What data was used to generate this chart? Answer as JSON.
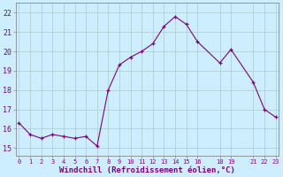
{
  "x": [
    0,
    1,
    2,
    3,
    4,
    5,
    6,
    7,
    8,
    9,
    10,
    11,
    12,
    13,
    14,
    15,
    16,
    18,
    19,
    21,
    22,
    23
  ],
  "y": [
    16.3,
    15.7,
    15.5,
    15.7,
    15.6,
    15.5,
    15.6,
    15.1,
    18.0,
    19.3,
    19.7,
    20.0,
    20.4,
    21.3,
    21.8,
    21.4,
    20.5,
    19.4,
    20.1,
    18.4,
    17.0,
    16.6
  ],
  "line_color": "#800080",
  "marker": "+",
  "marker_color": "#800080",
  "bg_color": "#cceeff",
  "grid_color": "#aacccc",
  "xlabel": "Windchill (Refroidissement éolien,°C)",
  "xlabel_color": "#800080",
  "xticks": [
    0,
    1,
    2,
    3,
    4,
    5,
    6,
    7,
    8,
    9,
    10,
    11,
    12,
    13,
    14,
    15,
    16,
    18,
    19,
    21,
    22,
    23
  ],
  "xtick_labels": [
    "0",
    "1",
    "2",
    "3",
    "4",
    "5",
    "6",
    "7",
    "8",
    "9",
    "10",
    "11",
    "12",
    "13",
    "14",
    "15",
    "16",
    "18",
    "19",
    "21",
    "22",
    "23"
  ],
  "yticks": [
    15,
    16,
    17,
    18,
    19,
    20,
    21,
    22
  ],
  "ylim": [
    14.6,
    22.5
  ],
  "xlim": [
    -0.3,
    23.3
  ],
  "tick_color": "#800080",
  "axis_color": "#888888",
  "figwidth": 3.2,
  "figheight": 2.0,
  "dpi": 100
}
